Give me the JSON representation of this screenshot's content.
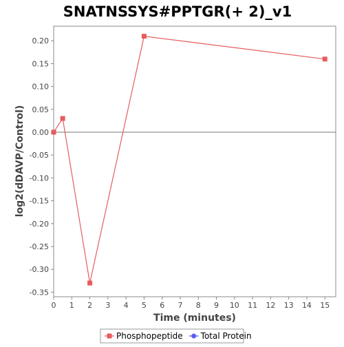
{
  "chart_data": {
    "type": "line",
    "title": "SNATNSSYS#PPTGR(+ 2)_v1",
    "xlabel": "Time (minutes)",
    "ylabel": "log2(dDAVP/Control)",
    "xlim": [
      0,
      15.6
    ],
    "ylim": [
      -0.36,
      0.232
    ],
    "x_ticks": [
      0,
      1,
      2,
      3,
      4,
      5,
      6,
      7,
      8,
      9,
      10,
      11,
      12,
      13,
      14,
      15
    ],
    "y_ticks": [
      "0.20",
      "0.15",
      "0.10",
      "0.05",
      "0.00",
      "-0.05",
      "-0.10",
      "-0.15",
      "-0.20",
      "-0.25",
      "-0.30",
      "-0.35"
    ],
    "reference_line_y": 0,
    "grid": false,
    "legend_position": "bottom",
    "series": [
      {
        "name": "Phosphopeptide",
        "color": "#e65c5c",
        "marker": "square",
        "points": [
          {
            "x": 0,
            "y": 0.0
          },
          {
            "x": 0.5,
            "y": 0.03
          },
          {
            "x": 2,
            "y": -0.33
          },
          {
            "x": 5,
            "y": 0.21
          },
          {
            "x": 15,
            "y": 0.16
          }
        ]
      },
      {
        "name": "Total Protein",
        "color": "#5c5cf0",
        "marker": "circle",
        "points": []
      }
    ]
  }
}
